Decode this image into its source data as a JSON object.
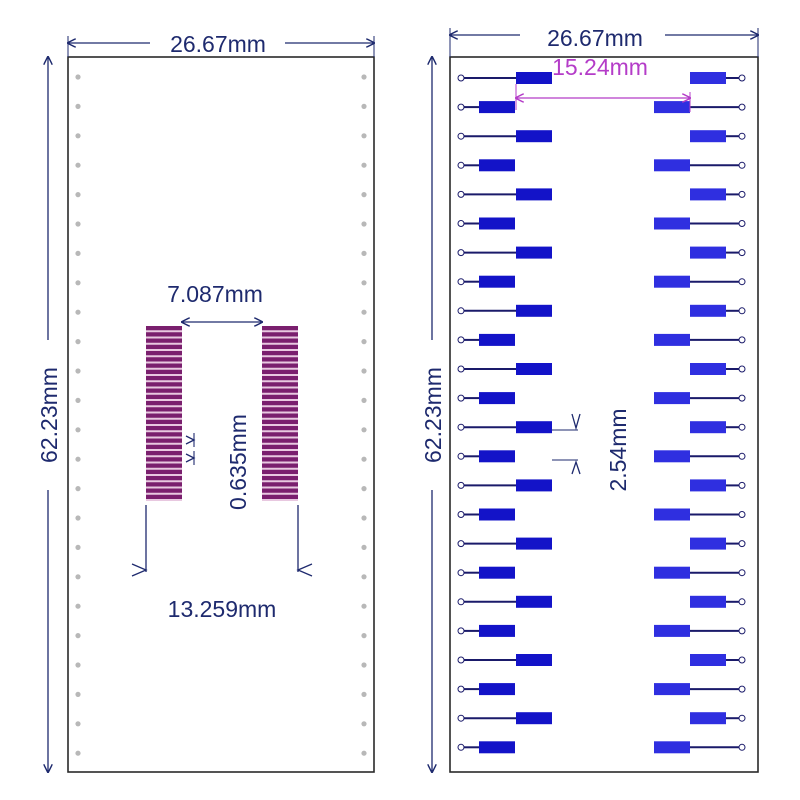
{
  "colors": {
    "outline": "#2a2a2a",
    "dim": "#1e2a6e",
    "dim_magenta": "#b43cc8",
    "pin_dot": "#b8b8b8",
    "pad_blue": "#1313c8",
    "pad_blue_light": "#2f2fe0",
    "trace": "#1a1a6a",
    "fine_pitch": "#7a1f6e",
    "fine_pitch_light": "#e8c8e0"
  },
  "left_panel": {
    "width_label": "26.67mm",
    "height_label": "62.23mm",
    "pad_spacing_label": "7.087mm",
    "pitch_label": "0.635mm",
    "span_label": "13.259mm",
    "pins_per_side": 24,
    "fine_pads_per_side": 28
  },
  "right_panel": {
    "width_label": "26.67mm",
    "height_label": "62.23mm",
    "row_spacing_label": "15.24mm",
    "pitch_label": "2.54mm",
    "pins_per_side": 24
  }
}
